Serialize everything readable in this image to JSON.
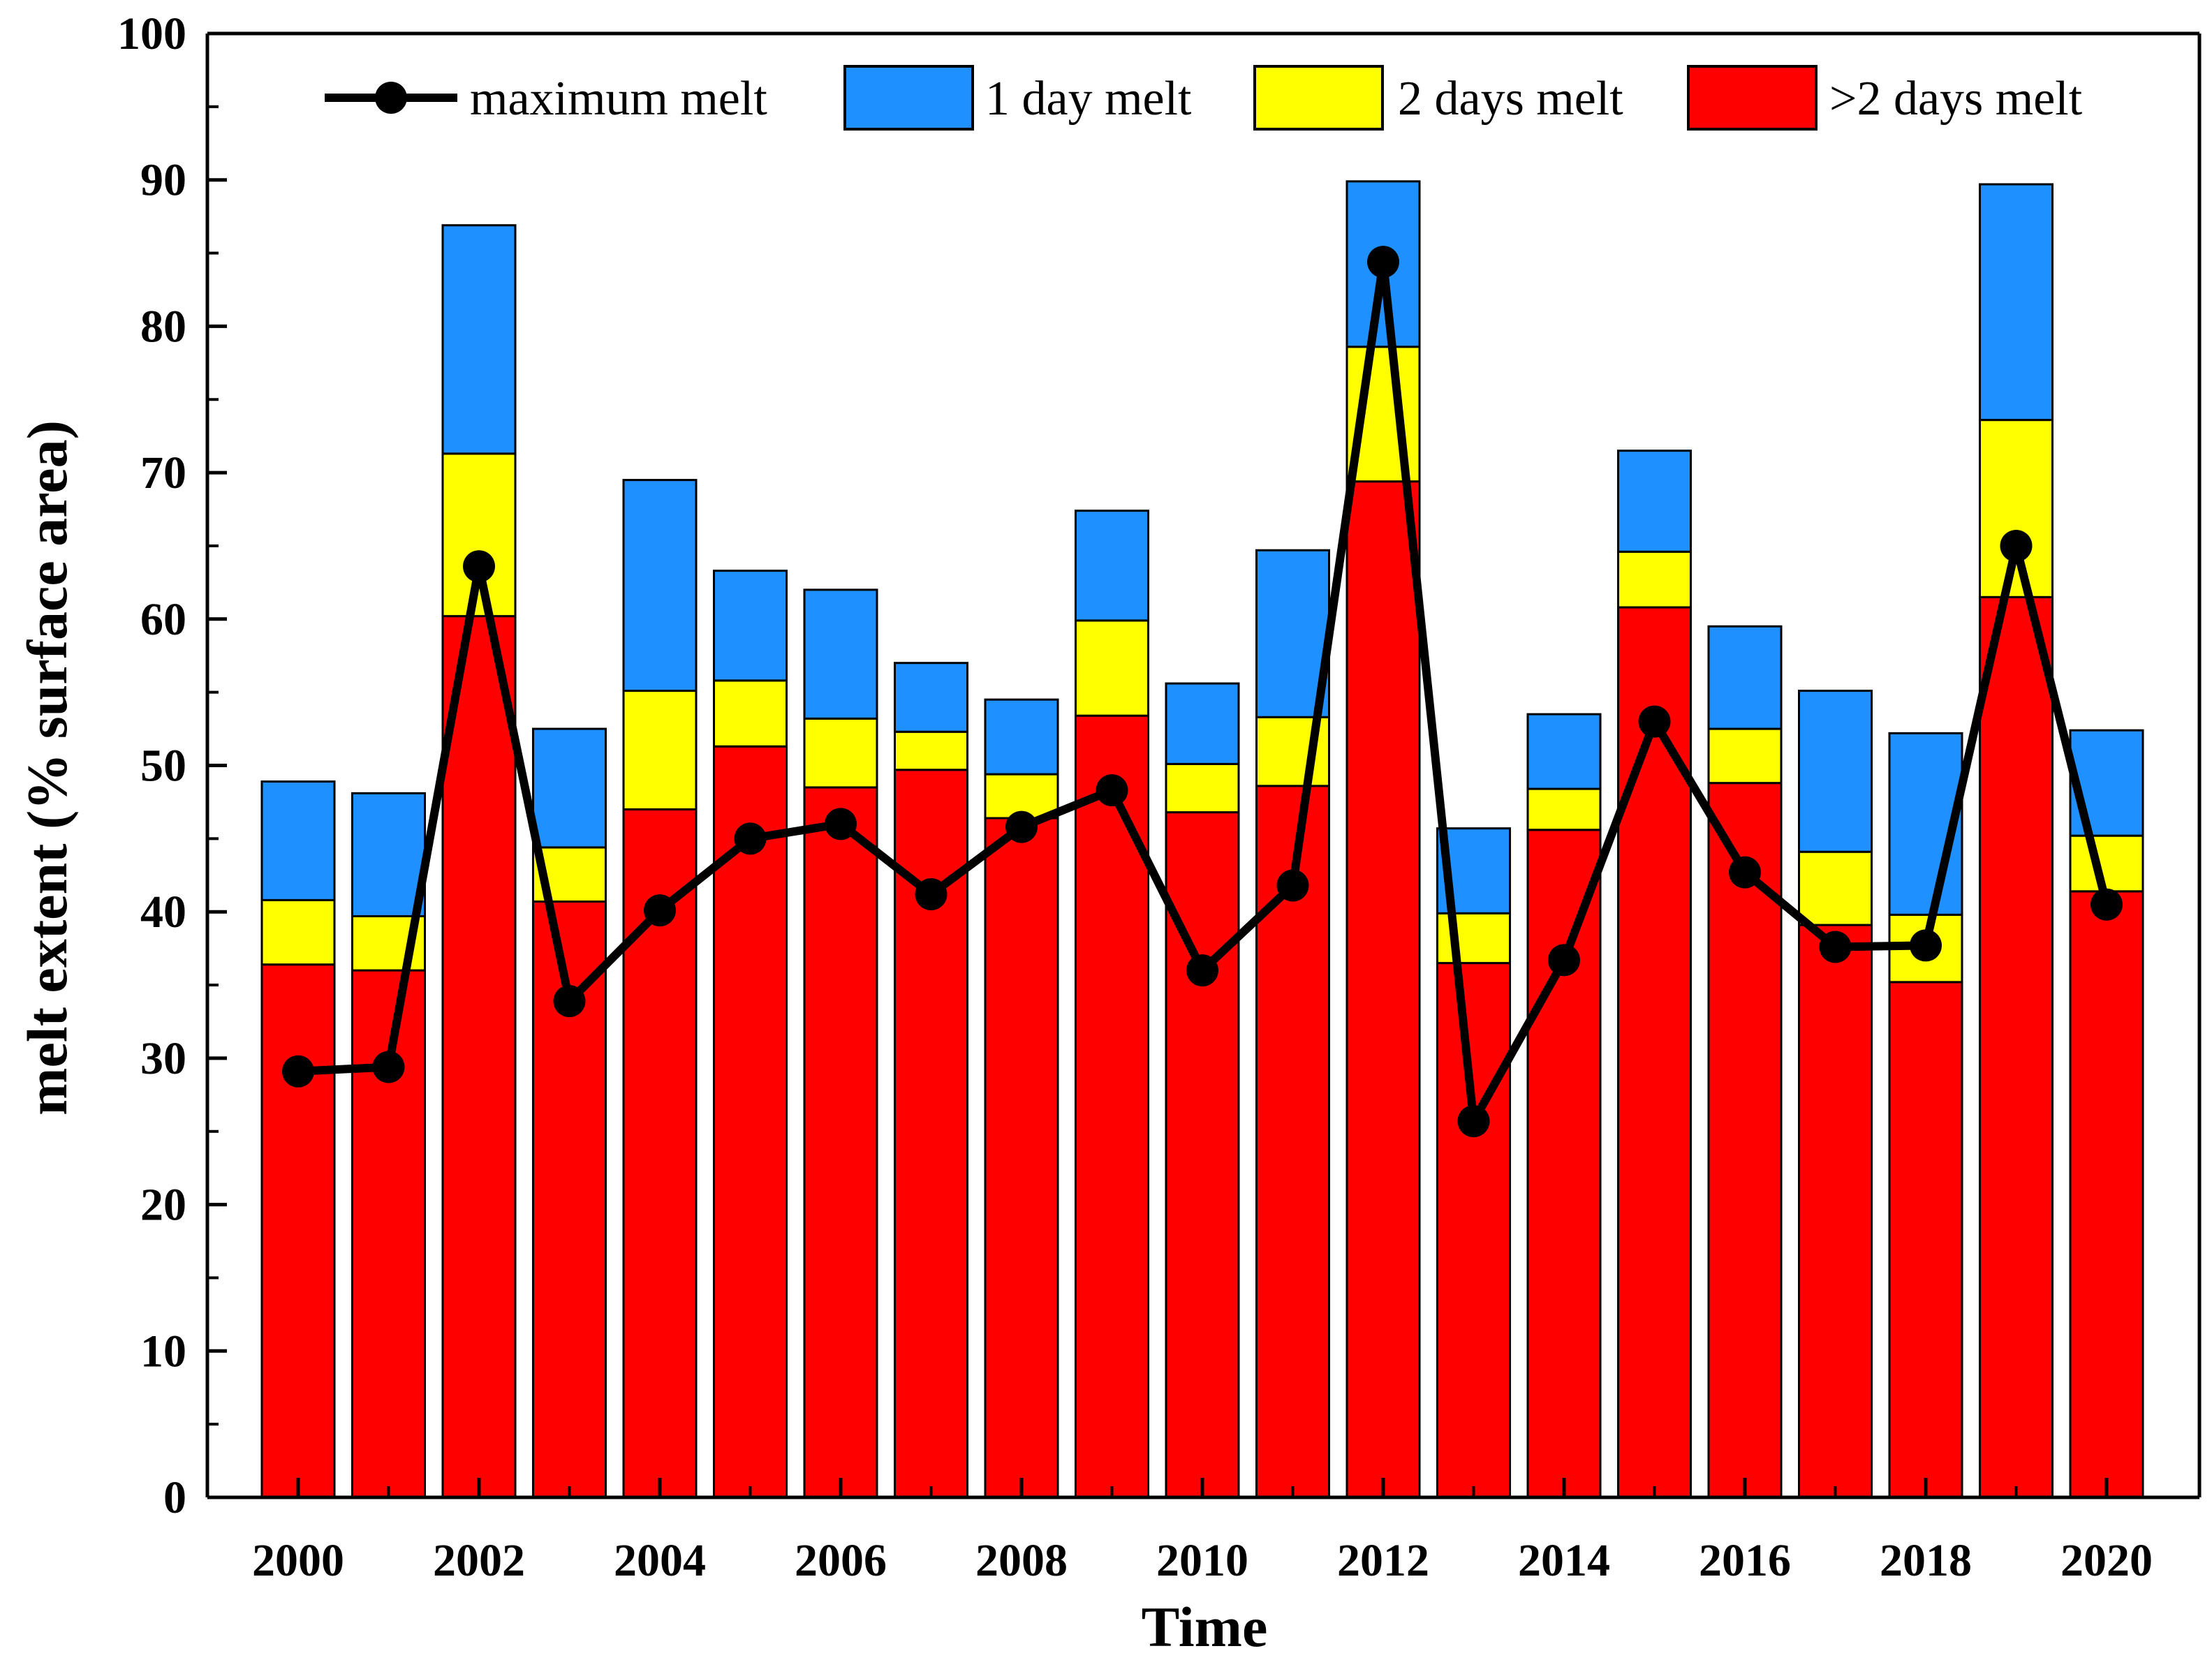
{
  "chart_data": {
    "type": "bar",
    "stacked": true,
    "title": "",
    "xlabel": "Time",
    "ylabel": "melt extent (% surface area)",
    "ylim": [
      0,
      100
    ],
    "yticks": [
      0,
      10,
      20,
      30,
      40,
      50,
      60,
      70,
      80,
      90,
      100
    ],
    "xtick_labels": [
      "2000",
      "2002",
      "2004",
      "2006",
      "2008",
      "2010",
      "2012",
      "2014",
      "2016",
      "2018",
      "2020"
    ],
    "categories": [
      "2000",
      "2001",
      "2002",
      "2003",
      "2004",
      "2005",
      "2006",
      "2007",
      "2008",
      "2009",
      "2010",
      "2011",
      "2012",
      "2013",
      "2014",
      "2015",
      "2016",
      "2017",
      "2018",
      "2019",
      "2020"
    ],
    "series": [
      {
        "name": ">2 days melt",
        "color": "#ff0000",
        "values": [
          36.4,
          36.0,
          60.2,
          40.7,
          47.0,
          51.3,
          48.5,
          49.7,
          46.4,
          53.4,
          46.8,
          48.6,
          69.4,
          36.5,
          45.6,
          60.8,
          48.8,
          39.1,
          35.2,
          61.5,
          41.4
        ]
      },
      {
        "name": "2 days melt",
        "color": "#ffff00",
        "values": [
          4.4,
          3.7,
          11.1,
          3.7,
          8.1,
          4.5,
          4.7,
          2.6,
          3.0,
          6.5,
          3.3,
          4.7,
          9.2,
          3.4,
          2.8,
          3.8,
          3.7,
          5.0,
          4.6,
          12.1,
          3.8
        ]
      },
      {
        "name": "1 day melt",
        "color": "#1e90ff",
        "values": [
          8.1,
          8.4,
          15.6,
          8.1,
          14.4,
          7.5,
          8.8,
          4.7,
          5.1,
          7.5,
          5.5,
          11.4,
          11.3,
          5.8,
          5.1,
          6.9,
          7.0,
          11.0,
          12.4,
          16.1,
          7.2
        ]
      },
      {
        "name": "maximum melt",
        "type": "line",
        "color": "#000000",
        "values": [
          29.1,
          29.4,
          63.6,
          33.9,
          40.1,
          45.0,
          46.0,
          41.2,
          45.8,
          48.3,
          36.0,
          41.8,
          84.4,
          25.7,
          36.7,
          53.0,
          42.7,
          37.6,
          37.7,
          65.0,
          40.5
        ]
      }
    ],
    "legend": {
      "placement": "top",
      "entries": [
        "maximum melt",
        "1 day melt",
        "2 days melt",
        ">2 days melt"
      ]
    }
  }
}
